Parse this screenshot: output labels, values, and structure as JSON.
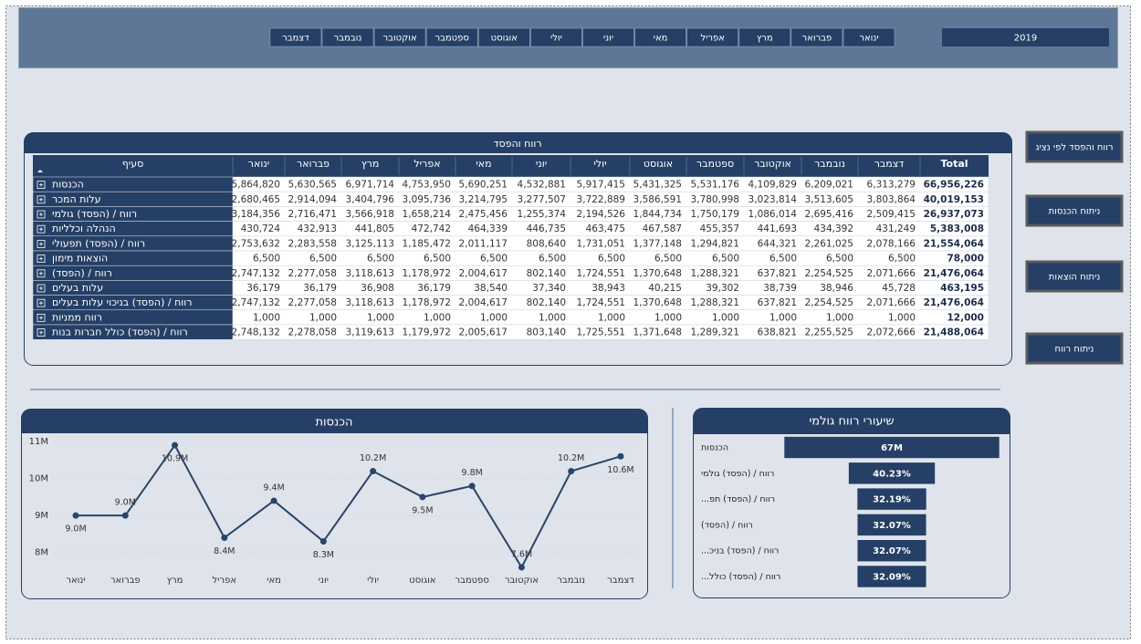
{
  "slicer": {
    "months": [
      "ינואר",
      "פברואר",
      "מרץ",
      "אפריל",
      "מאי",
      "יוני",
      "יולי",
      "אוגוסט",
      "ספטמבר",
      "אוקטובר",
      "נובמבר",
      "דצמבר"
    ],
    "year": "2019"
  },
  "buttons": [
    "רווח והפסד לפי נציג",
    "ניתוח הכנסות",
    "ניתוח הוצאות",
    "ניתוח רווח"
  ],
  "table": {
    "title": "רווח והפסד",
    "header": [
      "סעיף",
      "ינואר",
      "פברואר",
      "מרץ",
      "אפריל",
      "מאי",
      "יוני",
      "יולי",
      "אוגוסט",
      "ספטמבר",
      "אוקטובר",
      "נובמבר",
      "דצמבר",
      "Total"
    ],
    "rows": [
      [
        "הכנסות",
        "5,864,820",
        "5,630,565",
        "6,971,714",
        "4,753,950",
        "5,690,251",
        "4,532,881",
        "5,917,415",
        "5,431,325",
        "5,531,176",
        "4,109,829",
        "6,209,021",
        "6,313,279",
        "66,956,226"
      ],
      [
        "עלות המכר",
        "2,680,465",
        "2,914,094",
        "3,404,796",
        "3,095,736",
        "3,214,795",
        "3,277,507",
        "3,722,889",
        "3,586,591",
        "3,780,998",
        "3,023,814",
        "3,513,605",
        "3,803,864",
        "40,019,153"
      ],
      [
        "רווח / (הפסד) גולמי",
        "3,184,356",
        "2,716,471",
        "3,566,918",
        "1,658,214",
        "2,475,456",
        "1,255,374",
        "2,194,526",
        "1,844,734",
        "1,750,179",
        "1,086,014",
        "2,695,416",
        "2,509,415",
        "26,937,073"
      ],
      [
        "הנהלה וכלליות",
        "430,724",
        "432,913",
        "441,805",
        "472,742",
        "464,339",
        "446,735",
        "463,475",
        "467,587",
        "455,357",
        "441,693",
        "434,392",
        "431,249",
        "5,383,008"
      ],
      [
        "רווח / (הפסד) תפעולי",
        "2,753,632",
        "2,283,558",
        "3,125,113",
        "1,185,472",
        "2,011,117",
        "808,640",
        "1,731,051",
        "1,377,148",
        "1,294,821",
        "644,321",
        "2,261,025",
        "2,078,166",
        "21,554,064"
      ],
      [
        "הוצאות מימון",
        "6,500",
        "6,500",
        "6,500",
        "6,500",
        "6,500",
        "6,500",
        "6,500",
        "6,500",
        "6,500",
        "6,500",
        "6,500",
        "6,500",
        "78,000"
      ],
      [
        "רווח / (הפסד)",
        "2,747,132",
        "2,277,058",
        "3,118,613",
        "1,178,972",
        "2,004,617",
        "802,140",
        "1,724,551",
        "1,370,648",
        "1,288,321",
        "637,821",
        "2,254,525",
        "2,071,666",
        "21,476,064"
      ],
      [
        "עלות בעלים",
        "36,179",
        "36,179",
        "36,908",
        "36,179",
        "38,540",
        "37,340",
        "38,943",
        "40,215",
        "39,302",
        "38,739",
        "38,946",
        "45,728",
        "463,195"
      ],
      [
        "רווח / (הפסד) בניכוי עלות בעלים",
        "2,747,132",
        "2,277,058",
        "3,118,613",
        "1,178,972",
        "2,004,617",
        "802,140",
        "1,724,551",
        "1,370,648",
        "1,288,321",
        "637,821",
        "2,254,525",
        "2,071,666",
        "21,476,064"
      ],
      [
        "רווח ממניות",
        "1,000",
        "1,000",
        "1,000",
        "1,000",
        "1,000",
        "1,000",
        "1,000",
        "1,000",
        "1,000",
        "1,000",
        "1,000",
        "1,000",
        "12,000"
      ],
      [
        "רווח / (הפסד) כולל חברות בנות",
        "2,748,132",
        "2,278,058",
        "3,119,613",
        "1,179,972",
        "2,005,617",
        "803,140",
        "1,725,551",
        "1,371,648",
        "1,289,321",
        "638,821",
        "2,255,525",
        "2,072,666",
        "21,488,064"
      ]
    ]
  },
  "chart_data": [
    {
      "type": "line",
      "title": "הכנסות",
      "categories": [
        "ינואר",
        "פברואר",
        "מרץ",
        "אפריל",
        "מאי",
        "יוני",
        "יולי",
        "אוגוסט",
        "ספטמבר",
        "אוקטובר",
        "נובמבר",
        "דצמבר"
      ],
      "values": [
        9.0,
        9.0,
        10.9,
        8.4,
        9.4,
        8.3,
        10.2,
        9.5,
        9.8,
        7.6,
        10.2,
        10.6
      ],
      "value_labels": [
        "9.0M",
        "9.0M",
        "10.9M",
        "8.4M",
        "9.4M",
        "8.3M",
        "10.2M",
        "9.5M",
        "9.8M",
        "7.6M",
        "10.2M",
        "10.6M"
      ],
      "color": "#2b4468",
      "ylim": [
        7.5,
        11.1
      ],
      "yticks": [
        {
          "value": 8,
          "label": "8M"
        },
        {
          "value": 9,
          "label": "9M"
        },
        {
          "value": 10,
          "label": "10M"
        },
        {
          "value": 11,
          "label": "11M"
        }
      ],
      "grid": true
    },
    {
      "type": "funnel",
      "title": "שיעורי  רווח גולמי",
      "categories": [
        "הכנסות",
        "רווח / (הפסד) גולמי",
        "רווח / (הפסד) תפ...",
        "רווח / (הפסד)",
        "רווח / (הפסד) בניכ...",
        "רווח / (הפסד) כולל..."
      ],
      "values": [
        66.956226,
        26.937073,
        21.554064,
        21.476064,
        21.476064,
        21.488064
      ],
      "value_labels": [
        "67M",
        "40.23%",
        "32.19%",
        "32.07%",
        "32.07%",
        "32.09%"
      ],
      "color": "#253f66"
    }
  ]
}
